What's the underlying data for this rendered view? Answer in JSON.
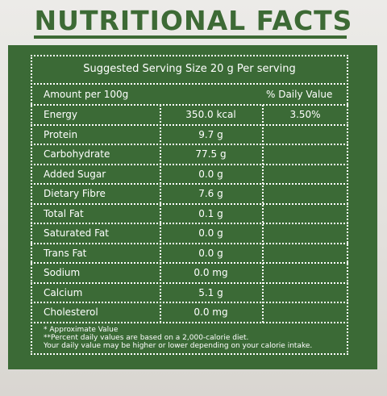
{
  "header": {
    "title": "NUTRITIONAL FACTS"
  },
  "table": {
    "serving": "Suggested Serving Size 20 g Per serving",
    "columns": [
      "Amount per 100g",
      "% Daily Value"
    ],
    "rows": [
      [
        "Energy",
        "350.0 kcal",
        "3.50%"
      ],
      [
        "Protein",
        "9.7 g"
      ],
      [
        "Carbohydrate",
        "77.5 g"
      ],
      [
        "Added Sugar",
        "0.0 g"
      ],
      [
        "Dietary Fibre",
        "7.6 g"
      ],
      [
        "Total Fat",
        "0.1 g"
      ],
      [
        "Saturated Fat",
        "0.0 g"
      ],
      [
        "Trans Fat",
        "0.0 g"
      ],
      [
        "Sodium",
        "0.0 mg"
      ],
      [
        "Calcium",
        "5.1 g"
      ],
      [
        "Cholesterol",
        "0.0 mg"
      ]
    ]
  },
  "notes": [
    "* Approximate Value",
    "**Percent daily values are based on a 2,000-calorie diet.",
    "Your daily value may be higher or lower depending on your calorie intake."
  ]
}
